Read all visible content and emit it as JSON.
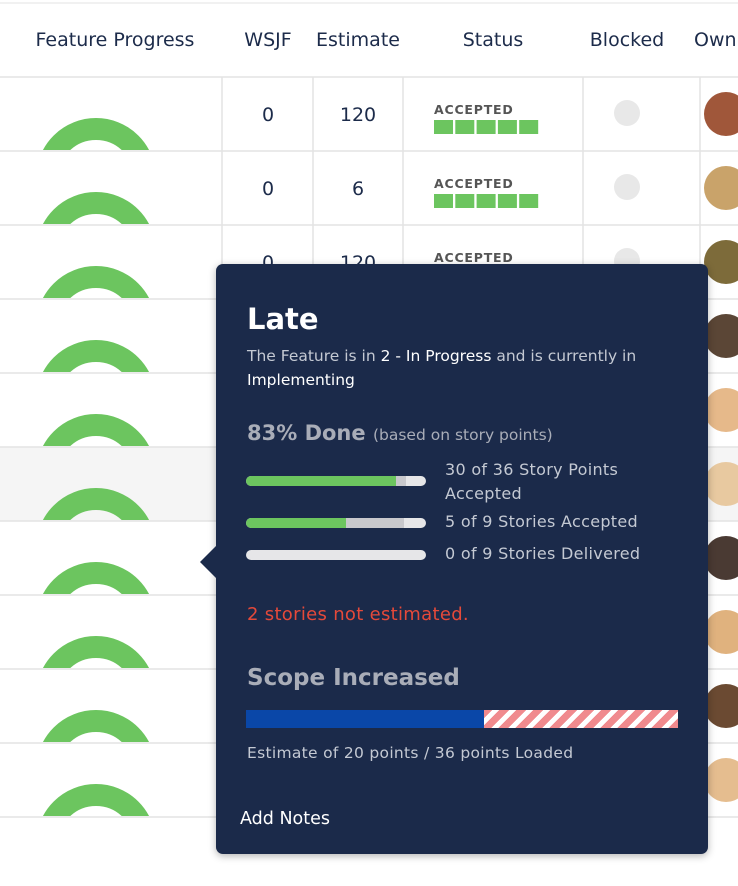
{
  "table": {
    "headers": [
      "Feature Progress",
      "WSJF",
      "Estimate",
      "Status",
      "Blocked",
      "Own"
    ],
    "rows": [
      {
        "wsjf": 0,
        "estimate": 120,
        "status": "ACCEPTED"
      },
      {
        "wsjf": 0,
        "estimate": 6,
        "status": "ACCEPTED"
      },
      {
        "wsjf": 0,
        "estimate": 120,
        "status": "ACCEPTED"
      }
    ]
  },
  "popover": {
    "title": "Late",
    "description": [
      "The Feature is in ",
      "2 - In Progress",
      " and is currently in ",
      "Implementing"
    ],
    "done": "83% Done",
    "done_note": "(based on story points)",
    "progress": [
      "30 of 36 Story Points Accepted",
      "5 of 9 Stories Accepted",
      "0 of 9 Stories Delivered"
    ],
    "warning": "2 stories not estimated.",
    "scope_title": "Scope Increased",
    "scope_text": "Estimate of 20 points / 36 points Loaded",
    "action": "Add Notes"
  }
}
